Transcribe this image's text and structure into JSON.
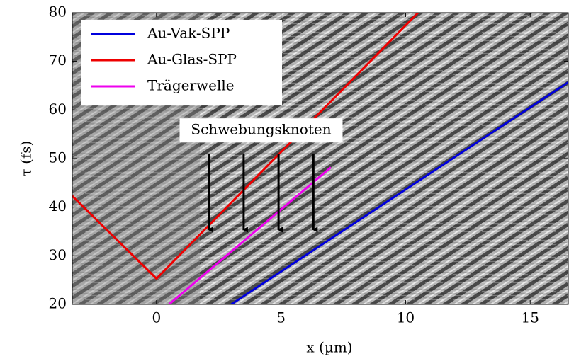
{
  "chart_data": {
    "type": "line",
    "xlabel": "x (µm)",
    "ylabel": "τ (fs)",
    "xlim": [
      -3.38,
      16.53
    ],
    "ylim": [
      20,
      80
    ],
    "xticks": [
      0,
      5,
      10,
      15
    ],
    "yticks": [
      20,
      30,
      40,
      50,
      60,
      70,
      80
    ],
    "legend": "upper left",
    "series": [
      {
        "name": "Au-Vak-SPP",
        "color": "#0000dd",
        "x": [
          3.0,
          16.53
        ],
        "values": [
          20,
          65.7
        ]
      },
      {
        "name": "Au-Glas-SPP",
        "color": "#ee0000",
        "x": [
          -3.38,
          0,
          10.5
        ],
        "values": [
          42.3,
          25.3,
          80
        ]
      },
      {
        "name": "Trägerwelle",
        "color": "#ee00ee",
        "x": [
          0.5,
          7.0
        ],
        "values": [
          20,
          48.2
        ]
      }
    ],
    "annotation": "Schwebungsknoten",
    "arrows": {
      "x": [
        2.1,
        3.5,
        4.9,
        6.3
      ],
      "y_start": 51,
      "y_end": 34.5
    }
  }
}
